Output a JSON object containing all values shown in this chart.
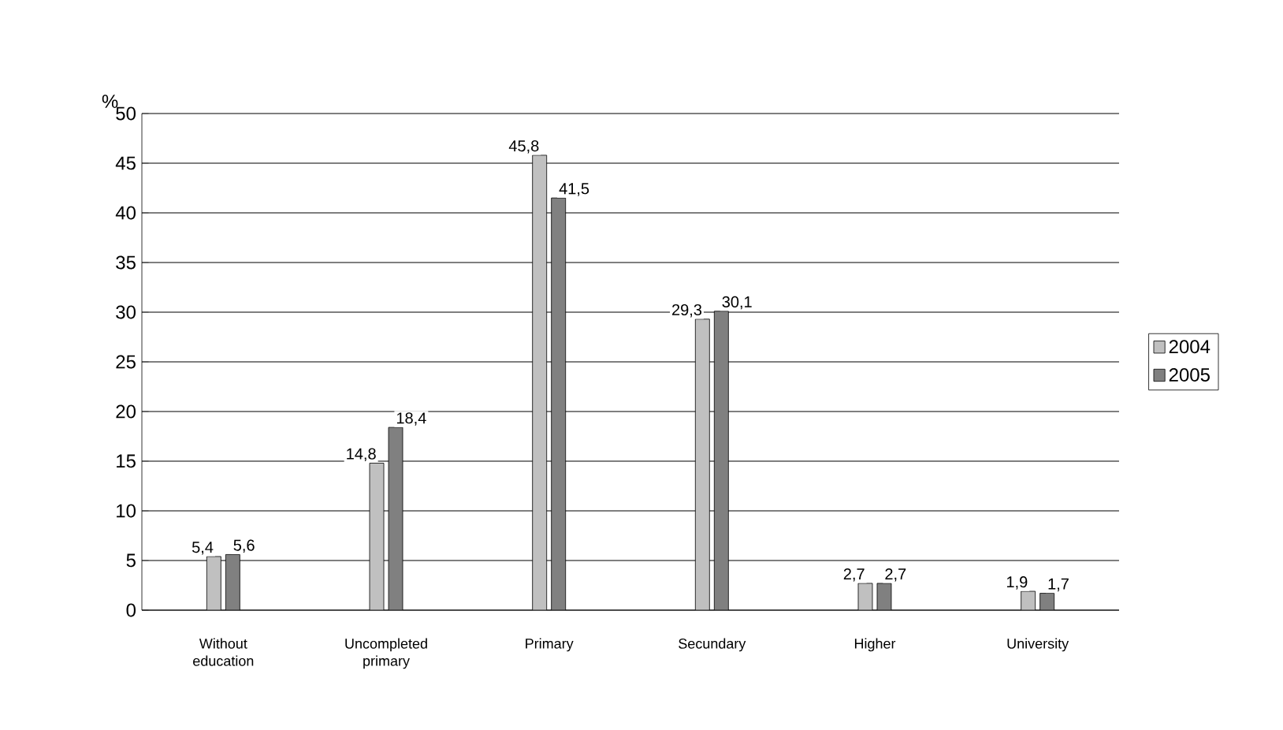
{
  "chart_data": {
    "type": "bar",
    "ylabel": "%",
    "categories": [
      "Without education",
      "Uncompleted primary",
      "Primary",
      "Secundary",
      "Higher",
      "University"
    ],
    "series": [
      {
        "name": "2004",
        "color": "#c0c0c0",
        "values": [
          5.4,
          14.8,
          45.8,
          29.3,
          2.7,
          1.9
        ],
        "value_labels": [
          "5,4",
          "14,8",
          "45,8",
          "29,3",
          "2,7",
          "1,9"
        ]
      },
      {
        "name": "2005",
        "color": "#808080",
        "values": [
          5.6,
          18.4,
          41.5,
          30.1,
          2.7,
          1.7
        ],
        "value_labels": [
          "5,6",
          "18,4",
          "41,5",
          "30,1",
          "2,7",
          "1,7"
        ]
      }
    ],
    "ylim": [
      0,
      50
    ],
    "yticks": [
      0,
      5,
      10,
      15,
      20,
      25,
      30,
      35,
      40,
      45,
      50
    ],
    "grid": "y",
    "legend": "right"
  }
}
